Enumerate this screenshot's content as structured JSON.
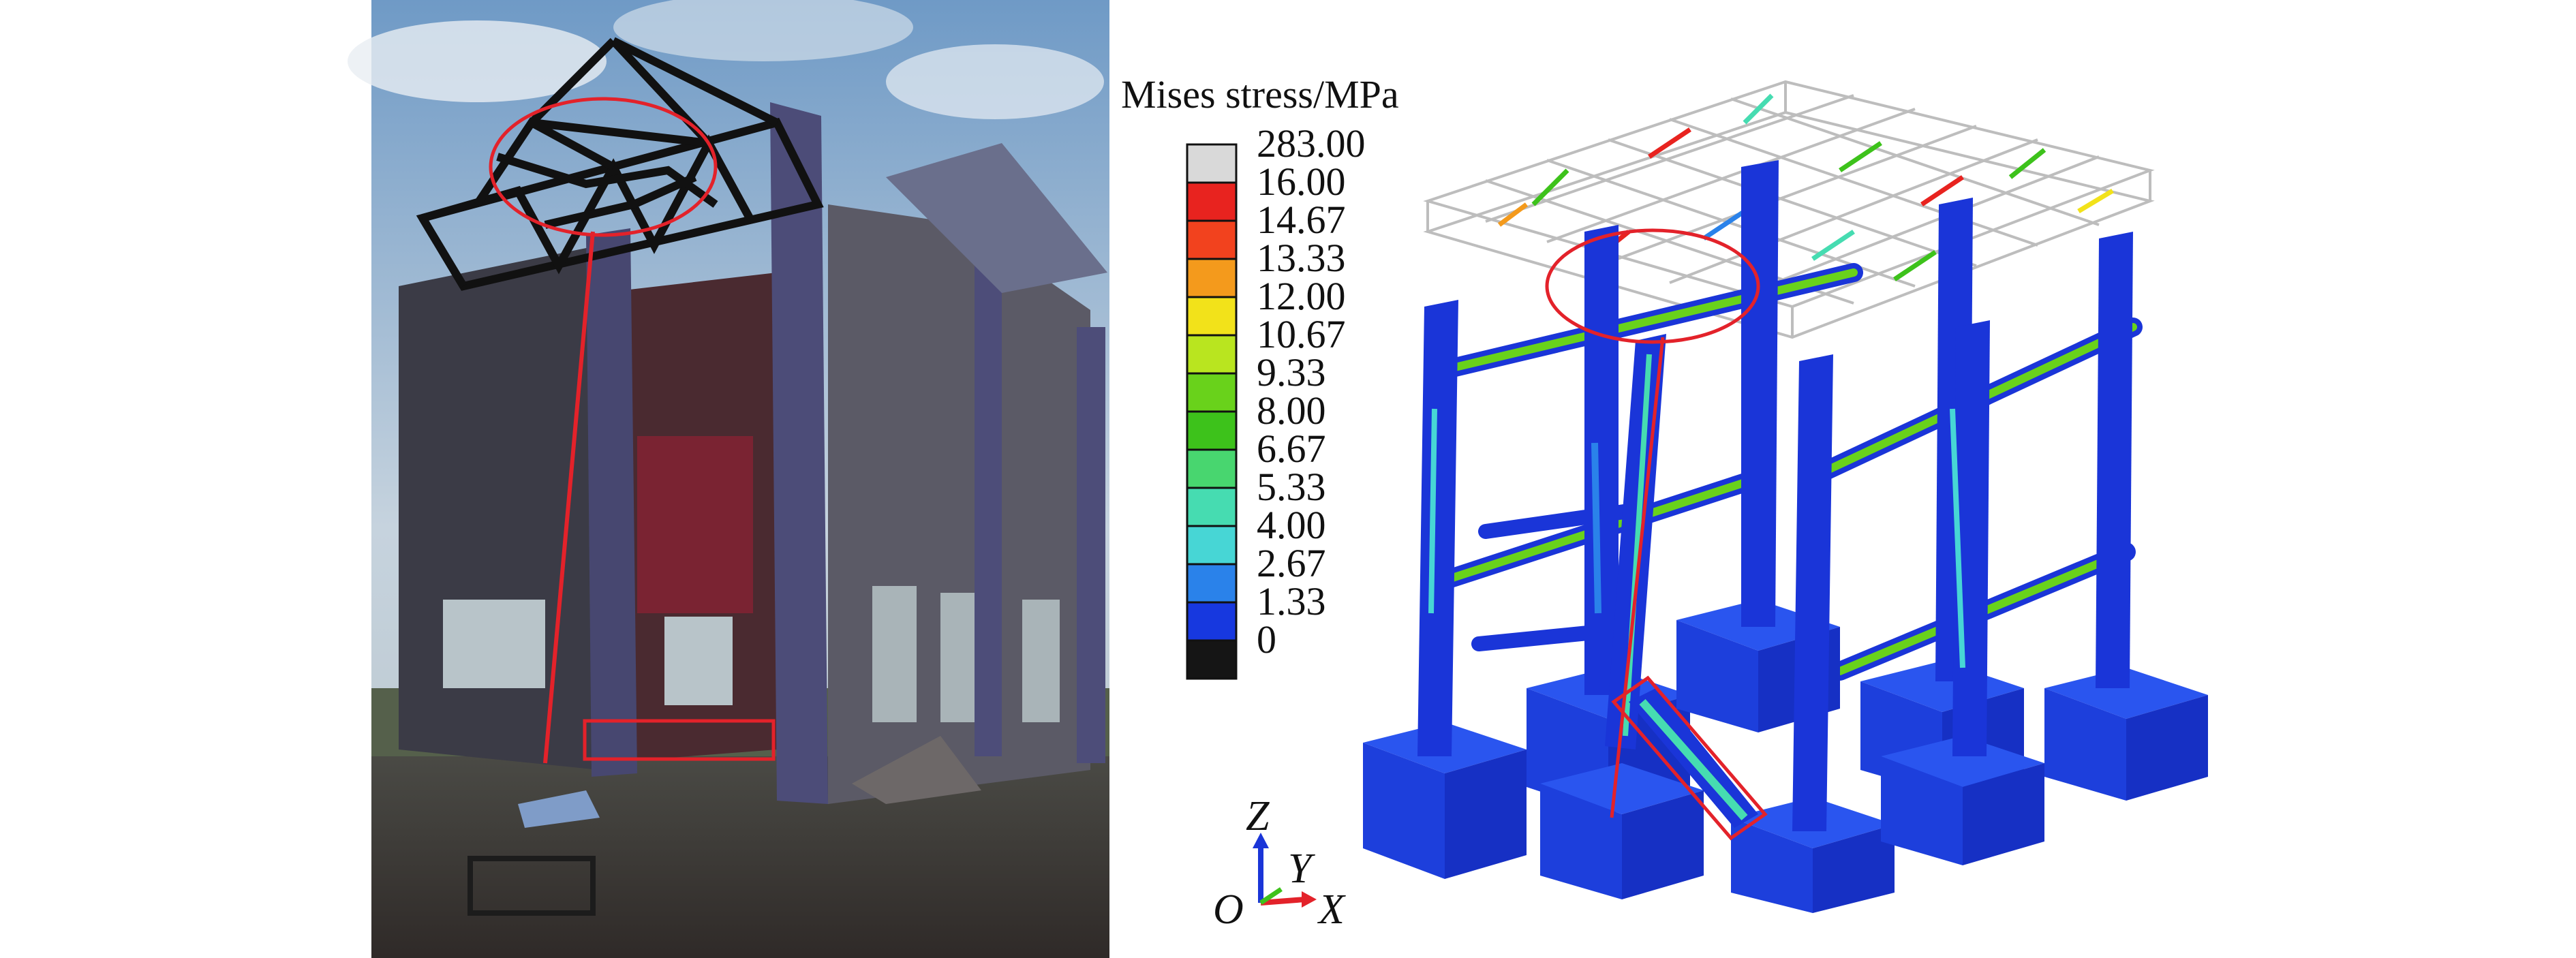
{
  "legend": {
    "title": "Mises stress/MPa",
    "labels": [
      "283.00",
      "16.00",
      "14.67",
      "13.33",
      "12.00",
      "10.67",
      "9.33",
      "8.00",
      "6.67",
      "5.33",
      "4.00",
      "2.67",
      "1.33",
      "0"
    ],
    "colors": [
      "#d9d9d9",
      "#e8231f",
      "#f2421e",
      "#f49a1c",
      "#f2e21a",
      "#b9e51f",
      "#69d21b",
      "#3dc21b",
      "#48d66f",
      "#46dcb1",
      "#47d6d5",
      "#2a82ea",
      "#1738df",
      "#151515"
    ]
  },
  "axes": {
    "z": "Z",
    "y": "Y",
    "x": "X",
    "origin": "O"
  },
  "colors": {
    "model_blue": "#1a35d8",
    "highlight": "#e3222a",
    "sky": "#7fa4c8",
    "wall": "#3a3a44"
  }
}
